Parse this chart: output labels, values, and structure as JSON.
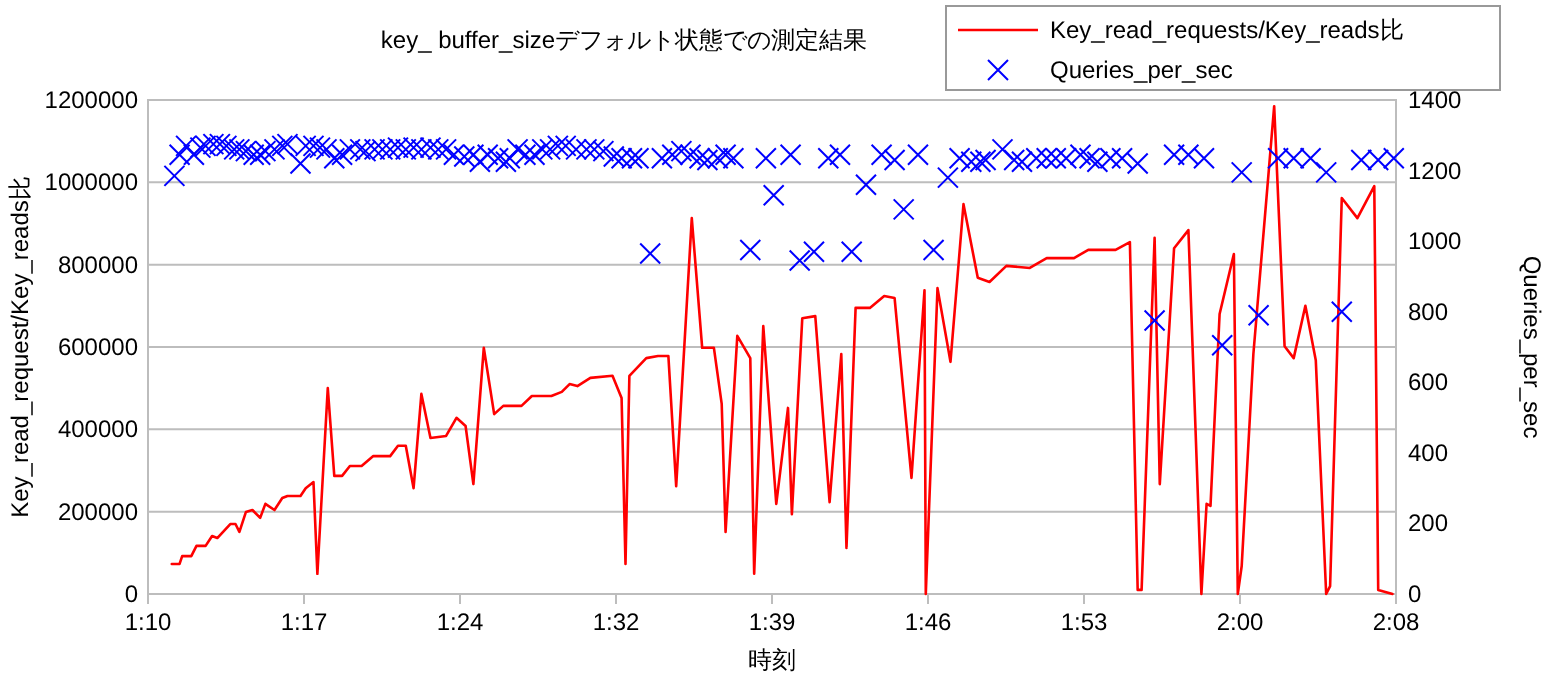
{
  "chart_data": {
    "type": "line",
    "title": "key_ buffer_sizeデフォルト状態での測定結果",
    "xlabel": "時刻",
    "ylabel": "Key_read_request/Key_reads比",
    "y2label": "Queries_per_sec",
    "xlim": [
      1.1667,
      2.1267
    ],
    "xticks": [
      {
        "value": 1.1667,
        "label": "1:10"
      },
      {
        "value": 1.2867,
        "label": "1:17"
      },
      {
        "value": 1.4067,
        "label": "1:24"
      },
      {
        "value": 1.5267,
        "label": "1:32"
      },
      {
        "value": 1.6467,
        "label": "1:39"
      },
      {
        "value": 1.7667,
        "label": "1:46"
      },
      {
        "value": 1.8867,
        "label": "1:53"
      },
      {
        "value": 2.0067,
        "label": "2:00"
      },
      {
        "value": 2.1267,
        "label": "2:08"
      }
    ],
    "ylim": [
      0,
      1200000
    ],
    "yticks": [
      0,
      200000,
      400000,
      600000,
      800000,
      1000000,
      1200000
    ],
    "y2lim": [
      0,
      1400
    ],
    "y2ticks": [
      0,
      200,
      400,
      600,
      800,
      1000,
      1200,
      1400
    ],
    "grid": "y",
    "legend": "top right",
    "series": [
      {
        "name": "Key_read_requests/Key_reads比",
        "type": "line",
        "color": "#ff0000",
        "marker": "none",
        "line_style": "solid",
        "x": [
          1.185,
          1.191,
          1.193,
          1.2,
          1.204,
          1.211,
          1.216,
          1.22,
          1.23,
          1.234,
          1.237,
          1.242,
          1.247,
          1.253,
          1.257,
          1.264,
          1.27,
          1.274,
          1.284,
          1.288,
          1.294,
          1.297,
          1.305,
          1.31,
          1.316,
          1.322,
          1.331,
          1.34,
          1.353,
          1.359,
          1.365,
          1.371,
          1.377,
          1.384,
          1.396,
          1.404,
          1.411,
          1.417,
          1.425,
          1.433,
          1.44,
          1.454,
          1.462,
          1.477,
          1.485,
          1.491,
          1.497,
          1.507,
          1.524,
          1.531,
          1.534,
          1.537,
          1.55,
          1.559,
          1.567,
          1.573,
          1.585,
          1.593,
          1.602,
          1.608,
          1.611,
          1.62,
          1.63,
          1.633,
          1.64,
          1.65,
          1.659,
          1.662,
          1.67,
          1.68,
          1.691,
          1.7,
          1.704,
          1.711,
          1.722,
          1.733,
          1.741,
          1.754,
          1.764,
          1.765,
          1.774,
          1.784,
          1.794,
          1.805,
          1.814,
          1.827,
          1.845,
          1.858,
          1.879,
          1.89,
          1.911,
          1.922,
          1.928,
          1.931,
          1.941,
          1.945,
          1.956,
          1.967,
          1.977,
          1.981,
          1.984,
          1.991,
          2.002,
          2.005,
          2.008,
          2.017,
          2.033,
          2.041,
          2.048,
          2.057,
          2.065,
          2.073,
          2.076,
          2.085,
          2.097,
          2.11,
          2.113,
          2.124
        ],
        "values": [
          73000,
          73000,
          92000,
          92000,
          117000,
          117000,
          141000,
          136000,
          170000,
          170000,
          151000,
          199000,
          204000,
          185000,
          219000,
          204000,
          233000,
          238000,
          238000,
          257000,
          272000,
          49000,
          500000,
          287000,
          287000,
          311000,
          311000,
          335000,
          335000,
          360000,
          360000,
          257000,
          486000,
          379000,
          384000,
          428000,
          408000,
          267000,
          598000,
          437000,
          457000,
          457000,
          481000,
          481000,
          491000,
          510000,
          505000,
          525000,
          530000,
          476000,
          73000,
          530000,
          573000,
          578000,
          578000,
          262000,
          913000,
          598000,
          598000,
          462000,
          151000,
          627000,
          573000,
          49000,
          651000,
          219000,
          452000,
          194000,
          670000,
          675000,
          223000,
          583000,
          112000,
          695000,
          695000,
          724000,
          719000,
          282000,
          738000,
          0,
          743000,
          564000,
          947000,
          768000,
          758000,
          797000,
          792000,
          816000,
          816000,
          836000,
          836000,
          855000,
          10000,
          10000,
          865000,
          267000,
          840000,
          884000,
          0,
          219000,
          214000,
          680000,
          826000,
          0,
          68000,
          583000,
          1185000,
          602000,
          573000,
          700000,
          568000,
          0,
          19000,
          962000,
          913000,
          991000,
          10000,
          0
        ]
      },
      {
        "name": "Queries_per_sec",
        "type": "scatter",
        "axis": "y2",
        "color": "#0000ff",
        "marker": "cross",
        "x": [
          1.187,
          1.191,
          1.196,
          1.202,
          1.207,
          1.211,
          1.217,
          1.222,
          1.227,
          1.233,
          1.237,
          1.242,
          1.248,
          1.253,
          1.257,
          1.264,
          1.27,
          1.274,
          1.284,
          1.288,
          1.294,
          1.299,
          1.304,
          1.31,
          1.316,
          1.322,
          1.33,
          1.334,
          1.341,
          1.347,
          1.353,
          1.359,
          1.365,
          1.371,
          1.377,
          1.384,
          1.39,
          1.396,
          1.402,
          1.41,
          1.417,
          1.422,
          1.428,
          1.436,
          1.442,
          1.445,
          1.451,
          1.457,
          1.464,
          1.47,
          1.476,
          1.482,
          1.488,
          1.496,
          1.504,
          1.51,
          1.517,
          1.525,
          1.531,
          1.539,
          1.544,
          1.553,
          1.562,
          1.57,
          1.577,
          1.584,
          1.591,
          1.597,
          1.605,
          1.611,
          1.617,
          1.63,
          1.642,
          1.648,
          1.661,
          1.668,
          1.679,
          1.69,
          1.699,
          1.708,
          1.719,
          1.731,
          1.741,
          1.748,
          1.759,
          1.771,
          1.782,
          1.791,
          1.8,
          1.807,
          1.811,
          1.824,
          1.833,
          1.839,
          1.85,
          1.858,
          1.865,
          1.873,
          1.884,
          1.891,
          1.897,
          1.907,
          1.916,
          1.928,
          1.941,
          1.956,
          1.967,
          1.979,
          1.993,
          2.008,
          2.021,
          2.036,
          2.048,
          2.061,
          2.073,
          2.085,
          2.1,
          2.113,
          2.125
        ],
        "values": [
          1185,
          1245,
          1270,
          1245,
          1265,
          1270,
          1275,
          1275,
          1270,
          1260,
          1260,
          1255,
          1245,
          1245,
          1255,
          1260,
          1270,
          1275,
          1220,
          1270,
          1270,
          1265,
          1260,
          1235,
          1245,
          1260,
          1260,
          1255,
          1260,
          1260,
          1260,
          1265,
          1260,
          1265,
          1260,
          1265,
          1260,
          1260,
          1245,
          1240,
          1245,
          1225,
          1245,
          1235,
          1225,
          1235,
          1260,
          1245,
          1245,
          1260,
          1260,
          1270,
          1270,
          1260,
          1260,
          1260,
          1255,
          1240,
          1235,
          1235,
          1235,
          965,
          1235,
          1245,
          1255,
          1245,
          1235,
          1230,
          1235,
          1245,
          1235,
          975,
          1235,
          1130,
          1245,
          945,
          970,
          1235,
          1245,
          970,
          1160,
          1245,
          1230,
          1090,
          1245,
          975,
          1180,
          1235,
          1225,
          1225,
          1230,
          1260,
          1230,
          1225,
          1235,
          1235,
          1235,
          1235,
          1245,
          1235,
          1225,
          1235,
          1235,
          1220,
          775,
          1245,
          1245,
          1235,
          705,
          1195,
          790,
          1235,
          1235,
          1235,
          1195,
          800,
          1230,
          1230,
          1235
        ]
      }
    ]
  }
}
